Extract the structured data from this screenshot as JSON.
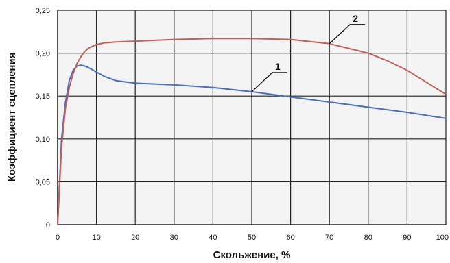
{
  "chart_data": {
    "type": "line",
    "xlabel": "Скольжение, %",
    "ylabel": "Коэффициент сцепления",
    "xlim": [
      0,
      100
    ],
    "ylim": [
      0,
      0.25
    ],
    "grid": true,
    "x_ticks": [
      "0",
      "10",
      "20",
      "30",
      "40",
      "50",
      "60",
      "70",
      "80",
      "90",
      "100"
    ],
    "y_ticks": [
      "0",
      "0,05",
      "0,10",
      "0,15",
      "0,20",
      "0,25"
    ],
    "series": [
      {
        "name": "1",
        "color": "#4a6fb5",
        "x": [
          0,
          1,
          2,
          3,
          4,
          5,
          6,
          7,
          8,
          10,
          12,
          15,
          20,
          30,
          40,
          50,
          60,
          70,
          80,
          90,
          100
        ],
        "y": [
          0,
          0.1,
          0.142,
          0.168,
          0.18,
          0.185,
          0.186,
          0.185,
          0.183,
          0.178,
          0.173,
          0.168,
          0.165,
          0.163,
          0.16,
          0.155,
          0.149,
          0.143,
          0.137,
          0.131,
          0.124
        ]
      },
      {
        "name": "2",
        "color": "#c0605a",
        "x": [
          0,
          1,
          2,
          3,
          4,
          5,
          6,
          7,
          8,
          9,
          10,
          12,
          15,
          20,
          30,
          40,
          50,
          60,
          70,
          80,
          85,
          90,
          95,
          100
        ],
        "y": [
          0,
          0.09,
          0.135,
          0.16,
          0.176,
          0.188,
          0.196,
          0.202,
          0.206,
          0.208,
          0.21,
          0.212,
          0.213,
          0.214,
          0.216,
          0.217,
          0.217,
          0.216,
          0.211,
          0.2,
          0.191,
          0.18,
          0.166,
          0.152
        ]
      }
    ],
    "annotations": [
      {
        "text": "1",
        "series": "1",
        "point_x": 50
      },
      {
        "text": "2",
        "series": "2",
        "point_x": 70
      }
    ]
  }
}
